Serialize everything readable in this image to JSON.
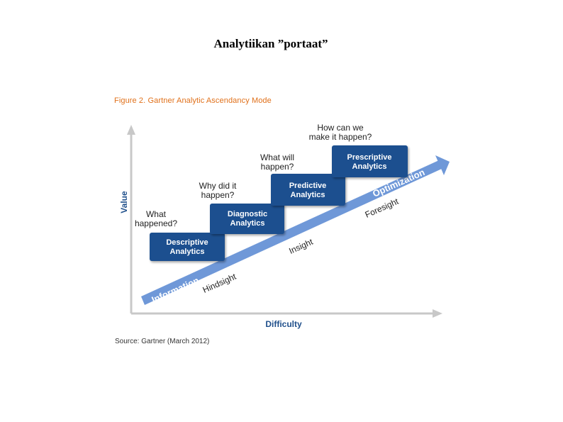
{
  "slide": {
    "title": "Analytiikan ”portaat”"
  },
  "figure": {
    "caption": "Figure 2. Gartner Analytic Ascendancy Mode",
    "source": "Source: Gartner (March 2012)",
    "y_axis_label": "Value",
    "x_axis_label": "Difficulty"
  },
  "stages": [
    {
      "label_line1": "Descriptive",
      "label_line2": "Analytics",
      "question_line1": "What",
      "question_line2": "happened?"
    },
    {
      "label_line1": "Diagnostic",
      "label_line2": "Analytics",
      "question_line1": "Why did it",
      "question_line2": "happen?"
    },
    {
      "label_line1": "Predictive",
      "label_line2": "Analytics",
      "question_line1": "What will",
      "question_line2": "happen?"
    },
    {
      "label_line1": "Prescriptive",
      "label_line2": "Analytics",
      "question_line1": "How can we",
      "question_line2": "make it happen?"
    }
  ],
  "band_labels": {
    "information": "Information",
    "optimization": "Optimization"
  },
  "sight_labels": {
    "hindsight": "Hindsight",
    "insight": "Insight",
    "foresight": "Foresight"
  },
  "colors": {
    "box_blue": "#1a4f8f",
    "arrow_blue": "#6f98d8",
    "axis_gray": "#c8c8c8",
    "caption_orange": "#e0701a",
    "axis_label_blue": "#1f4f8b"
  }
}
